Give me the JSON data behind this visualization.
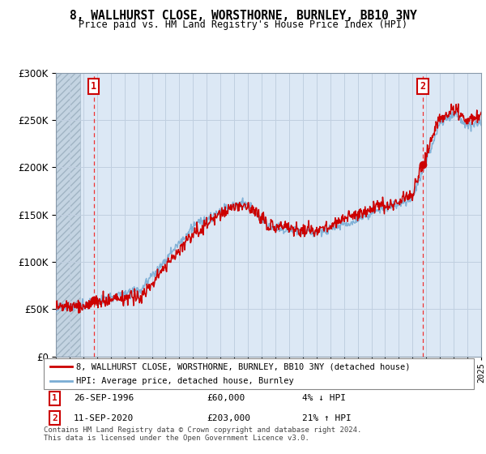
{
  "title": "8, WALLHURST CLOSE, WORSTHORNE, BURNLEY, BB10 3NY",
  "subtitle": "Price paid vs. HM Land Registry's House Price Index (HPI)",
  "sale1_date": "26-SEP-1996",
  "sale1_price": 60000,
  "sale1_label": "1",
  "sale1_hpi_text": "4% ↓ HPI",
  "sale2_date": "11-SEP-2020",
  "sale2_price": 203000,
  "sale2_label": "2",
  "sale2_hpi_text": "21% ↑ HPI",
  "legend1": "8, WALLHURST CLOSE, WORSTHORNE, BURNLEY, BB10 3NY (detached house)",
  "legend2": "HPI: Average price, detached house, Burnley",
  "footnote1": "Contains HM Land Registry data © Crown copyright and database right 2024.",
  "footnote2": "This data is licensed under the Open Government Licence v3.0.",
  "hpi_color": "#7aadd4",
  "price_color": "#cc0000",
  "marker_color": "#cc0000",
  "vline_color": "#ee3333",
  "bg_color": "#dce8f5",
  "hatch_facecolor": "#c8d4e0",
  "grid_color": "#c0cfe0",
  "ylim_max": 300000,
  "yticks": [
    0,
    50000,
    100000,
    150000,
    200000,
    250000,
    300000
  ],
  "xmin": 1994,
  "xmax": 2025,
  "sale1_t": 1996.75,
  "sale2_t": 2020.75
}
